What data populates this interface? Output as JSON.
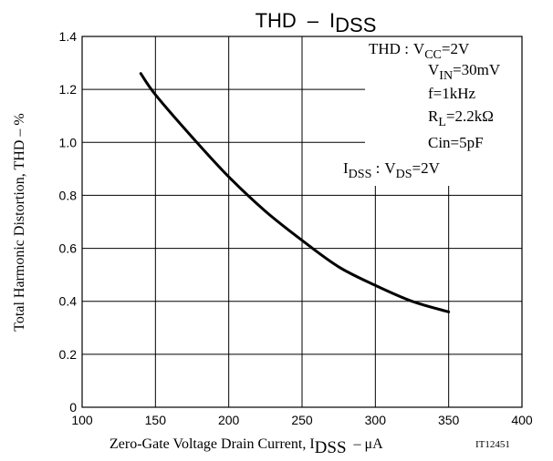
{
  "chart_data": {
    "type": "line",
    "title": {
      "main": "THD",
      "dash": "–",
      "i": "I",
      "sub": "DSS"
    },
    "xlabel": {
      "main": "Zero-Gate Voltage Drain Current, I",
      "sub": "DSS",
      "unit": "–  μA"
    },
    "ylabel": "Total Harmonic Distortion, THD  –  %",
    "figure_code": "IT12451",
    "xlim": [
      100,
      400
    ],
    "ylim": [
      0,
      1.4
    ],
    "x_ticks": [
      100,
      150,
      200,
      250,
      300,
      350,
      400
    ],
    "y_ticks": [
      0,
      0.2,
      0.4,
      0.6,
      0.8,
      1.0,
      1.2,
      1.4
    ],
    "x_tick_labels": [
      "100",
      "150",
      "200",
      "250",
      "300",
      "350",
      "400"
    ],
    "y_tick_labels": [
      "0",
      "0.2",
      "0.4",
      "0.6",
      "0.8",
      "1.0",
      "1.2",
      "1.4"
    ],
    "grid": true,
    "series": [
      {
        "x": [
          140,
          150,
          175,
          200,
          225,
          250,
          275,
          300,
          325,
          350
        ],
        "y": [
          1.26,
          1.18,
          1.02,
          0.87,
          0.74,
          0.63,
          0.53,
          0.46,
          0.4,
          0.36
        ]
      }
    ],
    "conditions": {
      "thd_prefix": "THD :",
      "vcc": {
        "v": "V",
        "sub": "CC",
        "val": "=2V"
      },
      "vin": {
        "v": "V",
        "sub": "IN",
        "val": "=30mV"
      },
      "freq": "f=1kHz",
      "rl": {
        "r": "R",
        "sub": "L",
        "val": "=2.2kΩ"
      },
      "cin": "Cin=5pF",
      "idss": {
        "i": "I",
        "sub": "DSS",
        "colon": " :"
      },
      "vds": {
        "v": "V",
        "sub": "DS",
        "val": "=2V"
      }
    }
  }
}
